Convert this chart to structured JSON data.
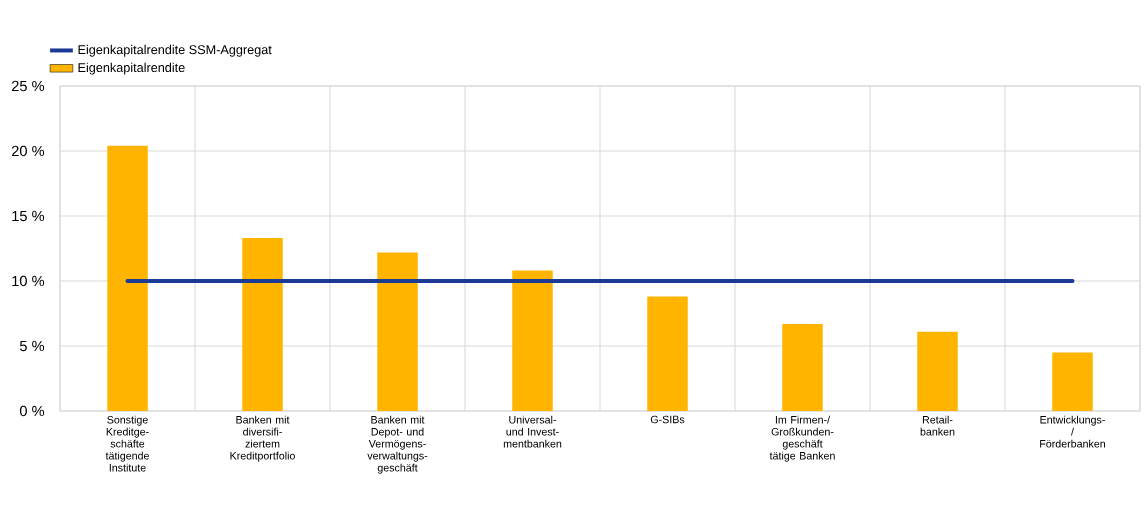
{
  "chart_data": {
    "type": "bar",
    "categories": [
      "Sonstige Kreditge- schäfte tätigende Institute",
      "Banken mit diversifi- ziertem Kreditportfolio",
      "Banken mit Depot- und Vermögens- verwaltungs- geschäft",
      "Universal- und Invest- mentbanken",
      "G-SIBs",
      "Im Firmen-/ Großkunden- geschäft tätige Banken",
      "Retail- banken",
      "Entwicklungs-/ Förderbanken"
    ],
    "series": [
      {
        "name": "Eigenkapitalrendite SSM-Aggregat",
        "type": "line",
        "color": "#1a3a96",
        "values": [
          10,
          10,
          10,
          10,
          10,
          10,
          10,
          10
        ]
      },
      {
        "name": "Eigenkapitalrendite",
        "color": "#ffb400",
        "values": [
          20.4,
          13.3,
          12.2,
          10.8,
          8.8,
          6.7,
          6.1,
          4.5
        ]
      }
    ],
    "ylim": [
      0,
      25
    ],
    "yticks": [
      {
        "value": 0,
        "label": "0 %"
      },
      {
        "value": 5,
        "label": "5 %"
      },
      {
        "value": 10,
        "label": "10 %"
      },
      {
        "value": 15,
        "label": "15 %"
      },
      {
        "value": 20,
        "label": "20 %"
      },
      {
        "value": 25,
        "label": "25 %"
      }
    ],
    "grid": true,
    "legend": "top left"
  }
}
